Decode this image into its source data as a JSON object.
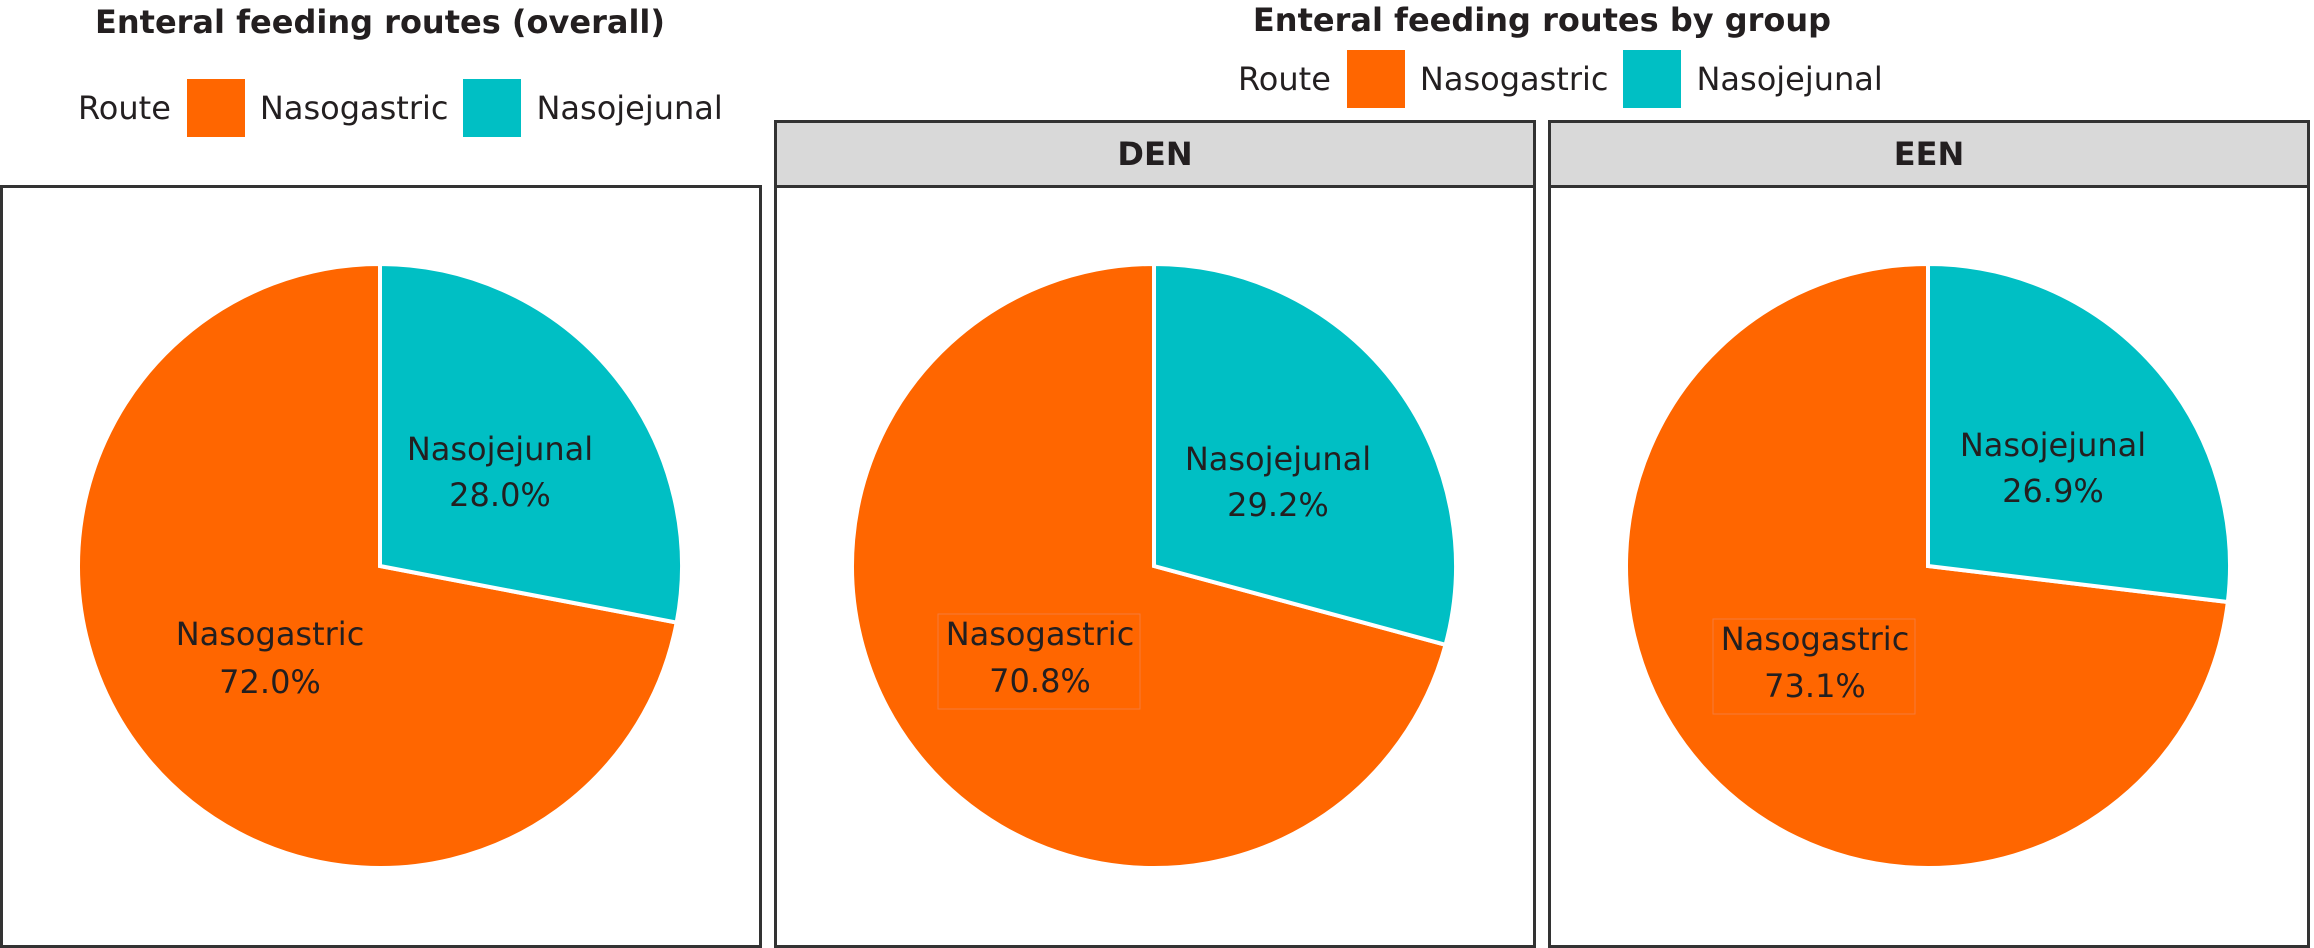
{
  "colors": {
    "nasogastric": "#ff6600",
    "nasojejunal": "#00bfc4",
    "strip_bg": "#d9d9d9",
    "border": "#333333",
    "text": "#231f20"
  },
  "left": {
    "title": "Enteral feeding routes (overall)",
    "legend": {
      "title": "Route",
      "items": [
        "Nasogastric",
        "Nasojejunal"
      ]
    }
  },
  "right": {
    "title": "Enteral feeding routes by group",
    "legend": {
      "title": "Route",
      "items": [
        "Nasogastric",
        "Nasojejunal"
      ]
    },
    "facets": [
      "DEN",
      "EEN"
    ]
  },
  "chart_data": [
    {
      "type": "pie",
      "title": "Enteral feeding routes (overall)",
      "legend_title": "Route",
      "legend_position": "top",
      "categories": [
        "Nasojejunal",
        "Nasogastric"
      ],
      "values": [
        28.0,
        72.0
      ],
      "labels": [
        "Nasojejunal\n28.0%",
        "Nasogastric\n72.0%"
      ],
      "colors": [
        "#00bfc4",
        "#ff6600"
      ]
    },
    {
      "type": "pie",
      "title": "Enteral feeding routes by group",
      "facet": "DEN",
      "legend_title": "Route",
      "legend_position": "top",
      "categories": [
        "Nasojejunal",
        "Nasogastric"
      ],
      "values": [
        29.2,
        70.8
      ],
      "labels": [
        "Nasojejunal\n29.2%",
        "Nasogastric\n70.8%"
      ],
      "colors": [
        "#00bfc4",
        "#ff6600"
      ]
    },
    {
      "type": "pie",
      "title": "Enteral feeding routes by group",
      "facet": "EEN",
      "legend_title": "Route",
      "legend_position": "top",
      "categories": [
        "Nasojejunal",
        "Nasogastric"
      ],
      "values": [
        26.9,
        73.1
      ],
      "labels": [
        "Nasojejunal\n26.9%",
        "Nasogastric\n73.1%"
      ],
      "colors": [
        "#00bfc4",
        "#ff6600"
      ]
    }
  ],
  "pie_labels": [
    {
      "nj_name": "Nasojejunal",
      "nj_pct": "28.0%",
      "ng_name": "Nasogastric",
      "ng_pct": "72.0%"
    },
    {
      "nj_name": "Nasojejunal",
      "nj_pct": "29.2%",
      "ng_name": "Nasogastric",
      "ng_pct": "70.8%"
    },
    {
      "nj_name": "Nasojejunal",
      "nj_pct": "26.9%",
      "ng_name": "Nasogastric",
      "ng_pct": "73.1%"
    }
  ]
}
